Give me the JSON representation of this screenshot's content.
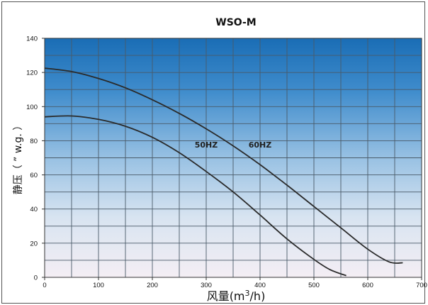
{
  "chart_data": {
    "type": "line",
    "title": "WSO-M",
    "xlabel": "风量(m³/h)",
    "xlabel_main": "风量(m",
    "xlabel_sup": "3",
    "xlabel_tail": "/h)",
    "ylabel": "静压（ ” w.g. ）",
    "xlim": [
      0,
      700
    ],
    "ylim": [
      0,
      140
    ],
    "x_ticks": [
      0,
      100,
      200,
      300,
      400,
      500,
      600,
      700
    ],
    "y_ticks": [
      0,
      20,
      40,
      60,
      80,
      100,
      120,
      140
    ],
    "x_tick_labels": [
      "0",
      "100",
      "200",
      "300",
      "400",
      "500",
      "600",
      "700"
    ],
    "y_tick_labels": [
      "0",
      "20",
      "40",
      "60",
      "80",
      "100",
      "120",
      "140"
    ],
    "grid": true,
    "background_colors": {
      "top": "#1a6db5",
      "bottom": "#f4eef4"
    },
    "series": [
      {
        "name": "50HZ",
        "color": "#2a2a2a",
        "label_at": [
          300,
          76
        ],
        "points": [
          [
            0,
            94
          ],
          [
            50,
            94.5
          ],
          [
            100,
            92.5
          ],
          [
            150,
            88.5
          ],
          [
            200,
            82
          ],
          [
            250,
            73
          ],
          [
            300,
            62
          ],
          [
            350,
            50
          ],
          [
            400,
            36.5
          ],
          [
            450,
            22.5
          ],
          [
            500,
            10.5
          ],
          [
            530,
            4.5
          ],
          [
            560,
            1
          ]
        ]
      },
      {
        "name": "60HZ",
        "color": "#2a2a2a",
        "label_at": [
          400,
          76
        ],
        "points": [
          [
            0,
            122.5
          ],
          [
            50,
            120.5
          ],
          [
            100,
            116.5
          ],
          [
            150,
            111
          ],
          [
            200,
            104
          ],
          [
            250,
            96
          ],
          [
            300,
            87
          ],
          [
            350,
            77
          ],
          [
            400,
            66
          ],
          [
            450,
            54
          ],
          [
            500,
            41.5
          ],
          [
            550,
            29
          ],
          [
            600,
            16.5
          ],
          [
            640,
            9
          ],
          [
            665,
            8.5
          ]
        ]
      }
    ]
  }
}
